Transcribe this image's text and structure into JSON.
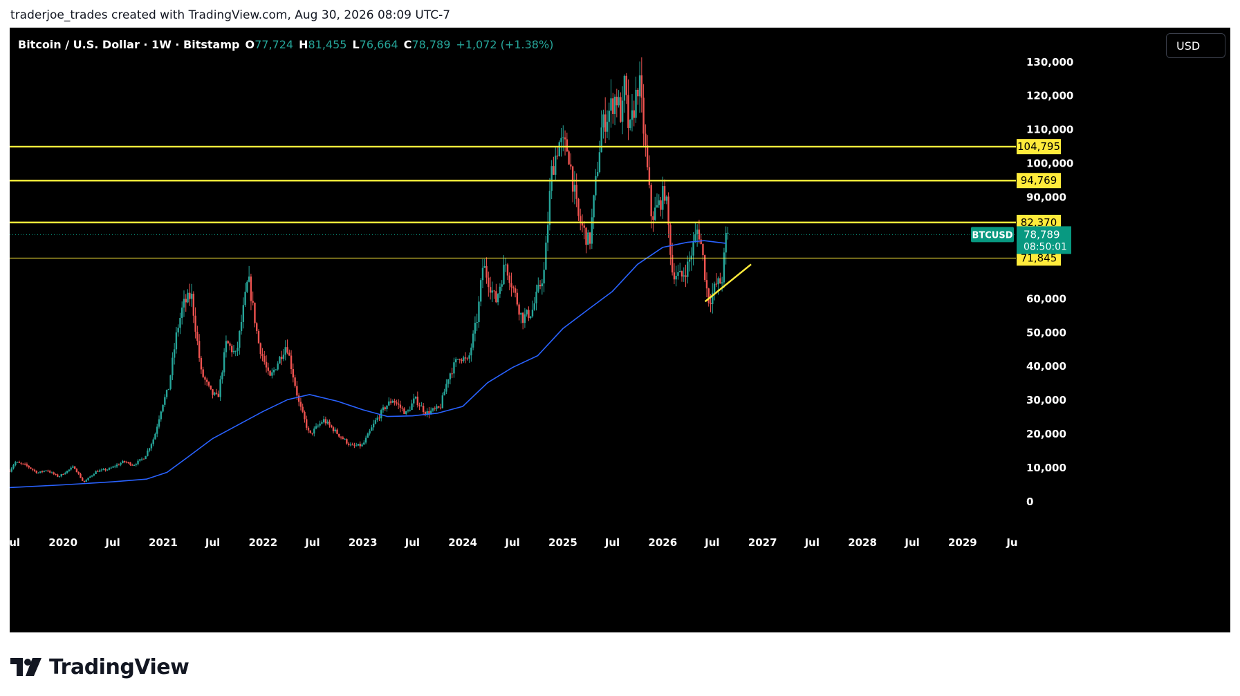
{
  "header": {
    "text": "traderjoe_trades created with TradingView.com, Aug 30, 2026 08:09 UTC-7"
  },
  "symbol_bar": {
    "name": "Bitcoin / U.S. Dollar · 1W · Bitstamp",
    "open_label": "O",
    "open": "77,724",
    "high_label": "H",
    "high": "81,455",
    "low_label": "L",
    "low": "76,664",
    "close_label": "C",
    "close": "78,789",
    "change": "+1,072 (+1.38%)"
  },
  "currency_button": "USD",
  "footer": {
    "brand": "TradingView"
  },
  "colors": {
    "background": "#000000",
    "up": "#26a69a",
    "down": "#ef5350",
    "ma": "#2962ff",
    "level": "#ffeb3b",
    "price_tag": "#089981"
  },
  "price_tag": {
    "symbol": "BTCUSD",
    "price": "78,789",
    "countdown": "08:50:01"
  },
  "chart_data": {
    "type": "candlestick",
    "timeframe": "1W",
    "exchange": "Bitstamp",
    "ylim": [
      0,
      135000
    ],
    "yticks": [
      {
        "value": 0,
        "label": "0"
      },
      {
        "value": 10000,
        "label": "10,000"
      },
      {
        "value": 20000,
        "label": "20,000"
      },
      {
        "value": 30000,
        "label": "30,000"
      },
      {
        "value": 40000,
        "label": "40,000"
      },
      {
        "value": 50000,
        "label": "50,000"
      },
      {
        "value": 60000,
        "label": "60,000"
      },
      {
        "value": 90000,
        "label": "90,000"
      },
      {
        "value": 100000,
        "label": "100,000"
      },
      {
        "value": 110000,
        "label": "110,000"
      },
      {
        "value": 120000,
        "label": "120,000"
      },
      {
        "value": 130000,
        "label": "130,000"
      }
    ],
    "xlim": [
      "2019-06-20",
      "2029-07-15"
    ],
    "xticks": [
      {
        "date": "2019-07-01",
        "label": "Jul"
      },
      {
        "date": "2020-01-01",
        "label": "2020"
      },
      {
        "date": "2020-07-01",
        "label": "Jul"
      },
      {
        "date": "2021-01-01",
        "label": "2021"
      },
      {
        "date": "2021-07-01",
        "label": "Jul"
      },
      {
        "date": "2022-01-01",
        "label": "2022"
      },
      {
        "date": "2022-07-01",
        "label": "Jul"
      },
      {
        "date": "2023-01-01",
        "label": "2023"
      },
      {
        "date": "2023-07-01",
        "label": "Jul"
      },
      {
        "date": "2024-01-01",
        "label": "2024"
      },
      {
        "date": "2024-07-01",
        "label": "Jul"
      },
      {
        "date": "2025-01-01",
        "label": "2025"
      },
      {
        "date": "2025-07-01",
        "label": "Jul"
      },
      {
        "date": "2026-01-01",
        "label": "2026"
      },
      {
        "date": "2026-07-01",
        "label": "Jul"
      },
      {
        "date": "2027-01-01",
        "label": "2027"
      },
      {
        "date": "2027-07-01",
        "label": "Jul"
      },
      {
        "date": "2028-01-01",
        "label": "2028"
      },
      {
        "date": "2028-07-01",
        "label": "Jul"
      },
      {
        "date": "2029-01-01",
        "label": "2029"
      },
      {
        "date": "2029-07-01",
        "label": "Ju"
      }
    ],
    "price_path": [
      [
        "2019-06-20",
        9000
      ],
      [
        "2019-07-10",
        11500
      ],
      [
        "2019-08-20",
        10500
      ],
      [
        "2019-10-01",
        8300
      ],
      [
        "2019-11-01",
        9200
      ],
      [
        "2019-12-15",
        7200
      ],
      [
        "2020-02-10",
        10200
      ],
      [
        "2020-03-16",
        5500
      ],
      [
        "2020-05-01",
        8800
      ],
      [
        "2020-06-15",
        9400
      ],
      [
        "2020-08-10",
        11700
      ],
      [
        "2020-09-15",
        10700
      ],
      [
        "2020-10-25",
        13000
      ],
      [
        "2020-11-30",
        19000
      ],
      [
        "2020-12-28",
        28500
      ],
      [
        "2021-01-20",
        33000
      ],
      [
        "2021-02-20",
        50000
      ],
      [
        "2021-03-15",
        58000
      ],
      [
        "2021-04-14",
        61000
      ],
      [
        "2021-05-20",
        38000
      ],
      [
        "2021-06-25",
        32000
      ],
      [
        "2021-07-20",
        30500
      ],
      [
        "2021-08-20",
        47000
      ],
      [
        "2021-09-25",
        43000
      ],
      [
        "2021-11-08",
        66000
      ],
      [
        "2021-12-15",
        47000
      ],
      [
        "2022-01-25",
        36000
      ],
      [
        "2022-03-28",
        46500
      ],
      [
        "2022-05-12",
        29000
      ],
      [
        "2022-06-20",
        19500
      ],
      [
        "2022-08-10",
        24000
      ],
      [
        "2022-10-10",
        19200
      ],
      [
        "2022-11-20",
        16200
      ],
      [
        "2022-12-31",
        16500
      ],
      [
        "2023-02-15",
        23500
      ],
      [
        "2023-03-25",
        28000
      ],
      [
        "2023-04-20",
        30000
      ],
      [
        "2023-06-10",
        25800
      ],
      [
        "2023-07-10",
        30300
      ],
      [
        "2023-08-20",
        26000
      ],
      [
        "2023-10-10",
        27500
      ],
      [
        "2023-11-10",
        37000
      ],
      [
        "2023-12-20",
        43000
      ],
      [
        "2024-01-20",
        41000
      ],
      [
        "2024-02-25",
        55000
      ],
      [
        "2024-03-15",
        70000
      ],
      [
        "2024-05-01",
        59000
      ],
      [
        "2024-06-05",
        70500
      ],
      [
        "2024-08-05",
        54000
      ],
      [
        "2024-09-10",
        56000
      ],
      [
        "2024-10-25",
        68000
      ],
      [
        "2024-11-20",
        97000
      ],
      [
        "2024-12-17",
        106000
      ],
      [
        "2025-01-20",
        104000
      ],
      [
        "2025-02-25",
        84000
      ],
      [
        "2025-04-08",
        76000
      ],
      [
        "2025-05-22",
        110000
      ],
      [
        "2025-07-14",
        120000
      ],
      [
        "2025-08-05",
        113000
      ],
      [
        "2025-08-14",
        123000
      ],
      [
        "2025-09-01",
        108000
      ],
      [
        "2025-10-06",
        125000
      ],
      [
        "2025-11-21",
        84000
      ],
      [
        "2025-12-15",
        87000
      ],
      [
        "2026-01-10",
        92000
      ],
      [
        "2026-02-05",
        68000
      ],
      [
        "2026-03-10",
        66000
      ],
      [
        "2026-04-05",
        70000
      ],
      [
        "2026-05-10",
        81000
      ],
      [
        "2026-05-25",
        74000
      ],
      [
        "2026-06-10",
        63000
      ],
      [
        "2026-06-20",
        59000
      ],
      [
        "2026-07-15",
        64000
      ],
      [
        "2026-08-05",
        65000
      ],
      [
        "2026-08-20",
        77700
      ],
      [
        "2026-08-30",
        78789
      ]
    ],
    "moving_average": [
      [
        "2019-06-20",
        4000
      ],
      [
        "2020-01-01",
        4800
      ],
      [
        "2020-07-01",
        5700
      ],
      [
        "2020-11-01",
        6500
      ],
      [
        "2021-01-15",
        8500
      ],
      [
        "2021-04-01",
        13000
      ],
      [
        "2021-07-01",
        18500
      ],
      [
        "2021-10-01",
        22500
      ],
      [
        "2022-01-01",
        26500
      ],
      [
        "2022-04-01",
        30000
      ],
      [
        "2022-06-20",
        31500
      ],
      [
        "2022-10-01",
        29500
      ],
      [
        "2023-01-01",
        27000
      ],
      [
        "2023-04-01",
        25000
      ],
      [
        "2023-07-01",
        25200
      ],
      [
        "2023-10-01",
        26000
      ],
      [
        "2024-01-01",
        28000
      ],
      [
        "2024-04-01",
        35000
      ],
      [
        "2024-07-01",
        39500
      ],
      [
        "2024-10-01",
        43000
      ],
      [
        "2025-01-01",
        51000
      ],
      [
        "2025-04-01",
        56500
      ],
      [
        "2025-07-01",
        62000
      ],
      [
        "2025-10-01",
        70000
      ],
      [
        "2026-01-01",
        75000
      ],
      [
        "2026-04-01",
        76500
      ],
      [
        "2026-06-01",
        77000
      ],
      [
        "2026-08-20",
        76200
      ]
    ],
    "horizontal_levels": [
      {
        "value": 104795,
        "label": "104,795",
        "width": 2.5
      },
      {
        "value": 94769,
        "label": "94,769",
        "width": 2.5
      },
      {
        "value": 82370,
        "label": "82,370",
        "width": 2.5
      },
      {
        "value": 71845,
        "label": "71,845",
        "width": 1
      }
    ],
    "trendline": [
      [
        "2026-06-05",
        59000
      ],
      [
        "2026-11-20",
        70000
      ]
    ],
    "last_price": 78789
  }
}
